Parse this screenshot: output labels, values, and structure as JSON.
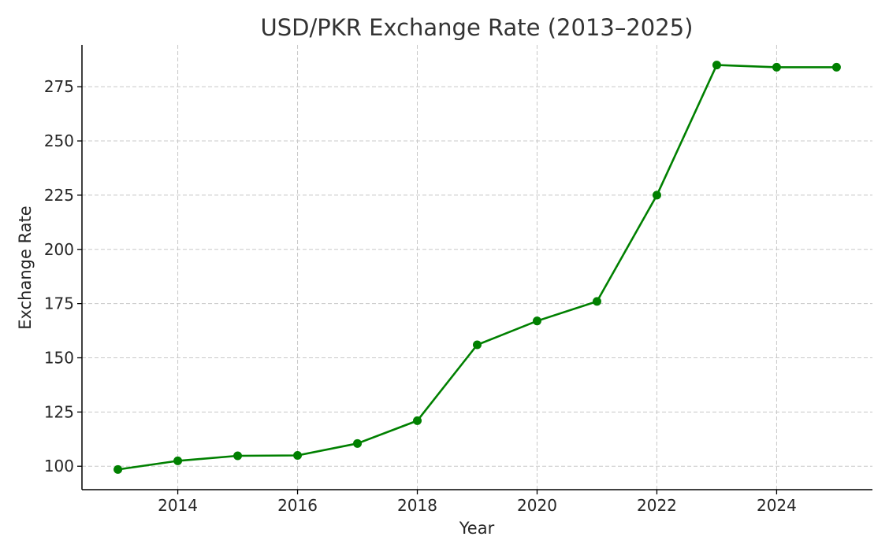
{
  "chart_data": {
    "type": "line",
    "title": "USD/PKR Exchange Rate (2013–2025)",
    "xlabel": "Year",
    "ylabel": "Exchange Rate",
    "x": [
      2013,
      2014,
      2015,
      2016,
      2017,
      2018,
      2019,
      2020,
      2021,
      2022,
      2023,
      2024,
      2025
    ],
    "series": [
      {
        "values": [
          98.5,
          102.5,
          104.8,
          105.0,
          110.5,
          121.0,
          156.0,
          167.0,
          176.0,
          225.0,
          285.0,
          284.0,
          284.0
        ],
        "color": "#008000"
      }
    ],
    "xlim": [
      2012.4,
      2025.6
    ],
    "ylim": [
      89.2,
      294.3
    ],
    "xticks": [
      2014,
      2016,
      2018,
      2020,
      2022,
      2024
    ],
    "yticks": [
      100,
      125,
      150,
      175,
      200,
      225,
      250,
      275
    ],
    "grid": true,
    "marker": "circle"
  }
}
